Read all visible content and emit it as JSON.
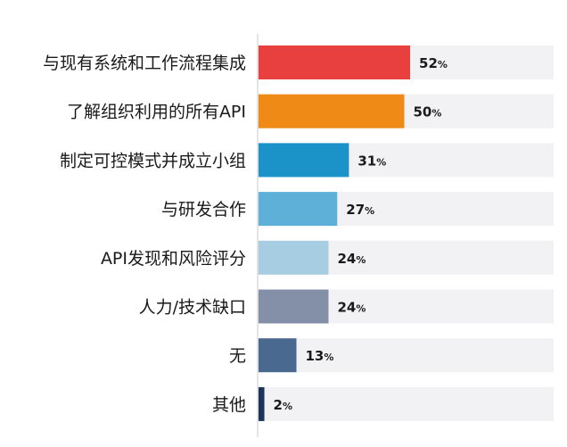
{
  "chart_data": {
    "type": "bar",
    "orientation": "horizontal",
    "categories": [
      "与现有系统和工作流程集成",
      "了解组织利用的所有API",
      "制定可控模式并成立小组",
      "与研发合作",
      "API发现和风险评分",
      "人力/技术缺口",
      "无",
      "其他"
    ],
    "values": [
      52,
      50,
      31,
      27,
      24,
      24,
      13,
      2
    ],
    "value_suffix": "%",
    "colors": [
      "#e8403e",
      "#f08a17",
      "#1b93c9",
      "#5fb0d8",
      "#a7cde3",
      "#8490a8",
      "#4a6990",
      "#1c3459"
    ],
    "track_color": "#f2f2f5",
    "xlim": [
      0,
      100
    ],
    "title": "",
    "xlabel": "",
    "ylabel": "",
    "grid": false,
    "legend": "none"
  }
}
